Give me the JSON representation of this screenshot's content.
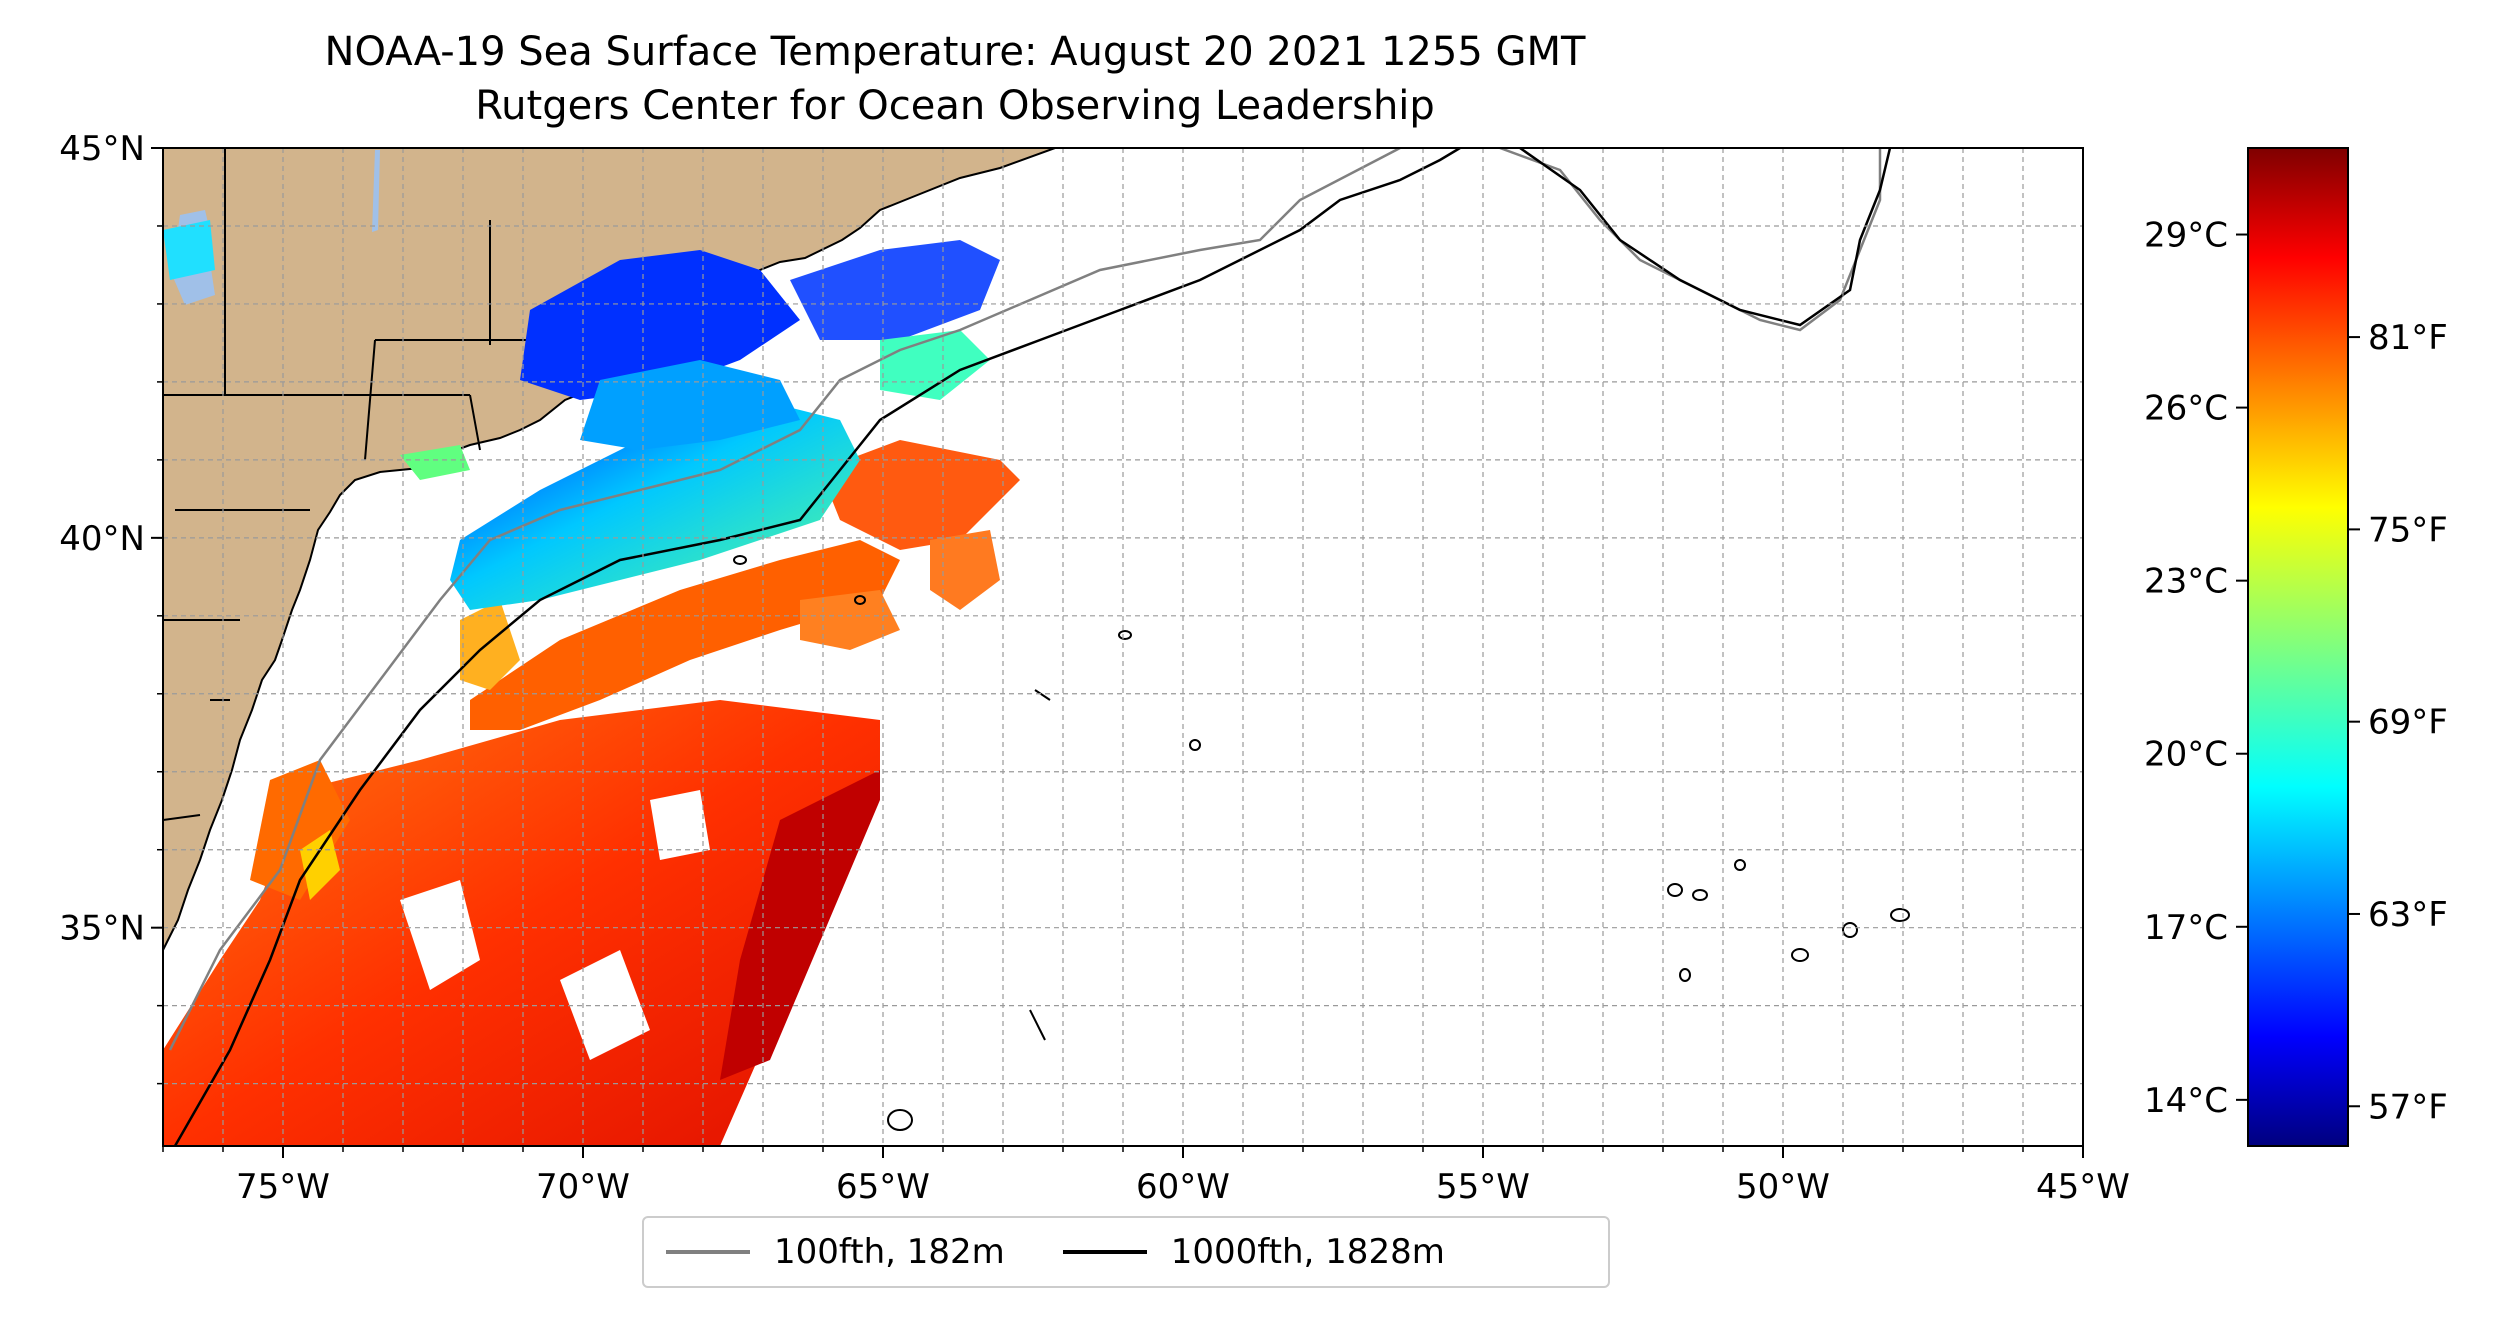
{
  "title": {
    "line1": "NOAA-19 Sea Surface Temperature: August 20 2021 1255 GMT",
    "line2": "Rutgers Center for Ocean Observing Leadership"
  },
  "map": {
    "lon_range": [
      -77,
      -45
    ],
    "lat_range": [
      32.2,
      45
    ],
    "lon_ticks": [
      {
        "value": -75,
        "label": "75°W"
      },
      {
        "value": -70,
        "label": "70°W"
      },
      {
        "value": -65,
        "label": "65°W"
      },
      {
        "value": -60,
        "label": "60°W"
      },
      {
        "value": -55,
        "label": "55°W"
      },
      {
        "value": -50,
        "label": "50°W"
      },
      {
        "value": -45,
        "label": "45°W"
      }
    ],
    "lat_ticks": [
      {
        "value": 45,
        "label": "45°N"
      },
      {
        "value": 40,
        "label": "40°N"
      },
      {
        "value": 35,
        "label": "35°N"
      }
    ],
    "grid": true,
    "land_color": "#d2b48c",
    "water_color": "#a0c0e8"
  },
  "colorbar": {
    "colormap": "jet",
    "range_celsius": [
      13.2,
      30.5
    ],
    "celsius_ticks": [
      {
        "value": 29,
        "label": "29°C"
      },
      {
        "value": 26,
        "label": "26°C"
      },
      {
        "value": 23,
        "label": "23°C"
      },
      {
        "value": 20,
        "label": "20°C"
      },
      {
        "value": 17,
        "label": "17°C"
      },
      {
        "value": 14,
        "label": "14°C"
      }
    ],
    "fahrenheit_ticks": [
      {
        "value": 81,
        "label": "81°F"
      },
      {
        "value": 75,
        "label": "75°F"
      },
      {
        "value": 69,
        "label": "69°F"
      },
      {
        "value": 63,
        "label": "63°F"
      },
      {
        "value": 57,
        "label": "57°F"
      }
    ]
  },
  "legend": {
    "placement": "bottom-center",
    "items": [
      {
        "label": "100fth, 182m",
        "color": "#808080"
      },
      {
        "label": "1000fth, 1828m",
        "color": "#000000"
      }
    ]
  }
}
